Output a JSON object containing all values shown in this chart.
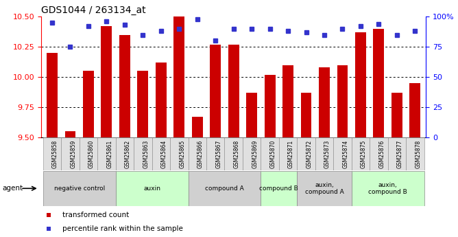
{
  "title": "GDS1044 / 263134_at",
  "samples": [
    "GSM25858",
    "GSM25859",
    "GSM25860",
    "GSM25861",
    "GSM25862",
    "GSM25863",
    "GSM25864",
    "GSM25865",
    "GSM25866",
    "GSM25867",
    "GSM25868",
    "GSM25869",
    "GSM25870",
    "GSM25871",
    "GSM25872",
    "GSM25873",
    "GSM25874",
    "GSM25875",
    "GSM25876",
    "GSM25877",
    "GSM25878"
  ],
  "bar_values": [
    10.2,
    9.55,
    10.05,
    10.42,
    10.35,
    10.05,
    10.12,
    10.5,
    9.67,
    10.27,
    10.27,
    9.87,
    10.02,
    10.1,
    9.87,
    10.08,
    10.1,
    10.37,
    10.4,
    9.87,
    9.95
  ],
  "dot_values": [
    95,
    75,
    92,
    96,
    93,
    85,
    88,
    90,
    98,
    80,
    90,
    90,
    90,
    88,
    87,
    85,
    90,
    92,
    94,
    85,
    88
  ],
  "ylim_left": [
    9.5,
    10.5
  ],
  "ylim_right": [
    0,
    100
  ],
  "yticks_left": [
    9.5,
    9.75,
    10.0,
    10.25,
    10.5
  ],
  "yticks_right": [
    0,
    25,
    50,
    75,
    100
  ],
  "bar_color": "#cc0000",
  "dot_color": "#3333cc",
  "groups": [
    {
      "label": "negative control",
      "start": 0,
      "end": 3,
      "color": "#d0d0d0"
    },
    {
      "label": "auxin",
      "start": 4,
      "end": 7,
      "color": "#ccffcc"
    },
    {
      "label": "compound A",
      "start": 8,
      "end": 11,
      "color": "#d0d0d0"
    },
    {
      "label": "compound B",
      "start": 12,
      "end": 13,
      "color": "#ccffcc"
    },
    {
      "label": "auxin,\ncompound A",
      "start": 14,
      "end": 16,
      "color": "#d0d0d0"
    },
    {
      "label": "auxin,\ncompound B",
      "start": 17,
      "end": 20,
      "color": "#ccffcc"
    }
  ],
  "sample_col_color": "#e0e0e0",
  "legend_items": [
    {
      "label": "transformed count",
      "color": "#cc0000"
    },
    {
      "label": "percentile rank within the sample",
      "color": "#3333cc"
    }
  ],
  "agent_label": "agent"
}
